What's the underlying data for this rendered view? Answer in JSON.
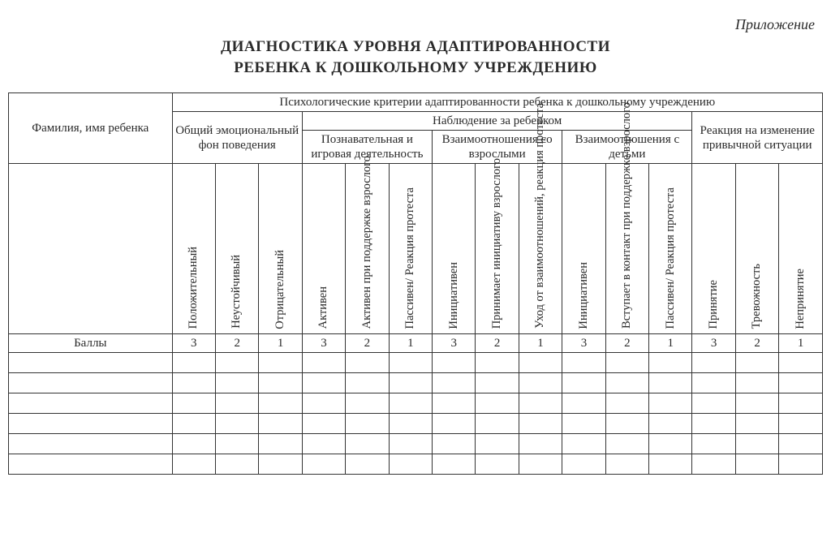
{
  "meta": {
    "appendix_label": "Приложение",
    "title_line1": "ДИАГНОСТИКА УРОВНЯ АДАПТИРОВАННОСТИ",
    "title_line2": "РЕБЕНКА К ДОШКОЛЬНОМУ УЧРЕЖДЕНИЮ"
  },
  "table": {
    "type": "table",
    "border_color": "#333333",
    "background_color": "#ffffff",
    "text_color": "#2a2a2a",
    "font_family": "Times New Roman",
    "header_fontsize": 15,
    "vertical_label_fontsize": 14.5,
    "name_col_width": 200,
    "data_col_width": 53,
    "vertical_label_height": 205,
    "data_row_height": 20,
    "empty_data_rows": 6,
    "headers": {
      "name": "Фамилия, имя ребенка",
      "criteria": "Психологические критерии адаптированности ребенка к дошкольному учреждению",
      "emotional": "Общий эмоциональ­ный фон поведения",
      "observation": "Наблюдение за ребенком",
      "reaction": "Реакция на изменение привычной ситуации",
      "cognitive": "Познаватель­ная и игровая деятельность",
      "rel_adults": "Взаимоотно­шения со взрослыми",
      "rel_children": "Взаимоотно­шения с детьми",
      "scores_label": "Баллы"
    },
    "columns": [
      {
        "label": "Положительный",
        "score": "3"
      },
      {
        "label": "Неустойчивый",
        "score": "2"
      },
      {
        "label": "Отрицательный",
        "score": "1"
      },
      {
        "label": "Активен",
        "score": "3"
      },
      {
        "label": "Активен при поддержке взрослого",
        "score": "2"
      },
      {
        "label": "Пассивен/ Реакция протеста",
        "score": "1"
      },
      {
        "label": "Инициативен",
        "score": "3"
      },
      {
        "label": "Принимает инициативу взрослого",
        "score": "2"
      },
      {
        "label": "Уход от взаимоотноше­ний, реакция протеста",
        "score": "1"
      },
      {
        "label": "Инициативен",
        "score": "3"
      },
      {
        "label": "Вступает в контакт при поддержке взрослого",
        "score": "2"
      },
      {
        "label": "Пассивен/ Реакция протеста",
        "score": "1"
      },
      {
        "label": "Принятие",
        "score": "3"
      },
      {
        "label": "Тревожность",
        "score": "2"
      },
      {
        "label": "Непринятие",
        "score": "1"
      }
    ]
  }
}
